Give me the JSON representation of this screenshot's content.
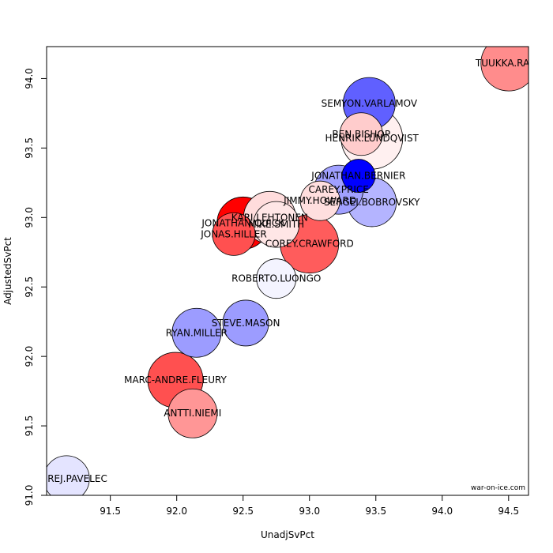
{
  "chart_data": {
    "type": "scatter",
    "xlabel": "UnadjSvPct",
    "ylabel": "AdjustedSvPct",
    "xlim": [
      91.02,
      94.65
    ],
    "ylim": [
      91.0,
      94.23
    ],
    "x_ticks": [
      91.5,
      92.0,
      92.5,
      93.0,
      93.5,
      94.0,
      94.5
    ],
    "x_tick_labels": [
      "91.5",
      "92.0",
      "92.5",
      "93.0",
      "93.5",
      "94.0",
      "94.5"
    ],
    "y_ticks": [
      91.0,
      91.5,
      92.0,
      92.5,
      93.0,
      93.5,
      94.0
    ],
    "y_tick_labels": [
      "91.0",
      "91.5",
      "92.0",
      "92.5",
      "93.0",
      "93.5",
      "94.0"
    ],
    "grid": false,
    "credit": "war-on-ice.com",
    "points": [
      {
        "label": "HENRIK.LUNDQVIST",
        "x": 93.47,
        "y": 93.57,
        "r": 39,
        "color": "#fff0f0"
      },
      {
        "label": "COREY.CRAWFORD",
        "x": 93.0,
        "y": 92.81,
        "r": 37,
        "color": "#ff5c5c"
      },
      {
        "label": "TUUKKA.RASK",
        "x": 94.5,
        "y": 94.11,
        "r": 35,
        "color": "#ff8c8c"
      },
      {
        "label": "MARC-ANDRE.FLEURY",
        "x": 91.99,
        "y": 91.83,
        "r": 35,
        "color": "#ff5050"
      },
      {
        "label": "JONATHAN.QUICK",
        "x": 92.5,
        "y": 92.96,
        "r": 33,
        "color": "#ff0000"
      },
      {
        "label": "KARI.LEHTONEN",
        "x": 92.7,
        "y": 93.0,
        "r": 33,
        "color": "#ffdcdc"
      },
      {
        "label": "SEMYON.VARLAMOV",
        "x": 93.45,
        "y": 93.82,
        "r": 33,
        "color": "#6060ff"
      },
      {
        "label": "SERGEI.BOBROVSKY",
        "x": 93.47,
        "y": 93.11,
        "r": 31,
        "color": "#b4b4ff"
      },
      {
        "label": "CAREY.PRICE",
        "x": 93.22,
        "y": 93.2,
        "r": 31,
        "color": "#a0a0ff"
      },
      {
        "label": "ANTTI.NIEMI",
        "x": 92.12,
        "y": 91.59,
        "r": 31,
        "color": "#ff9696"
      },
      {
        "label": "RYAN.MILLER",
        "x": 92.15,
        "y": 92.17,
        "r": 31,
        "color": "#9c9cff"
      },
      {
        "label": "ONDREJ.PAVELEC",
        "x": 91.17,
        "y": 91.12,
        "r": 29,
        "color": "#e4e4ff"
      },
      {
        "label": "STEVE.MASON",
        "x": 92.52,
        "y": 92.24,
        "r": 29,
        "color": "#9c9cff"
      },
      {
        "label": "MIKE.SMITH",
        "x": 92.75,
        "y": 92.95,
        "r": 29,
        "color": "#ffe6e6"
      },
      {
        "label": "JONAS.HILLER",
        "x": 92.43,
        "y": 92.88,
        "r": 27,
        "color": "#ff5050"
      },
      {
        "label": "BEN.BISHOP",
        "x": 93.39,
        "y": 93.6,
        "r": 27,
        "color": "#ffcccc"
      },
      {
        "label": "ROBERTO.LUONGO",
        "x": 92.75,
        "y": 92.56,
        "r": 25,
        "color": "#f4f4ff"
      },
      {
        "label": "JIMMY.HOWARD",
        "x": 93.08,
        "y": 93.12,
        "r": 25,
        "color": "#ffdede"
      },
      {
        "label": "JONATHAN.BERNIER",
        "x": 93.37,
        "y": 93.3,
        "r": 21,
        "color": "#0000ff"
      }
    ]
  }
}
